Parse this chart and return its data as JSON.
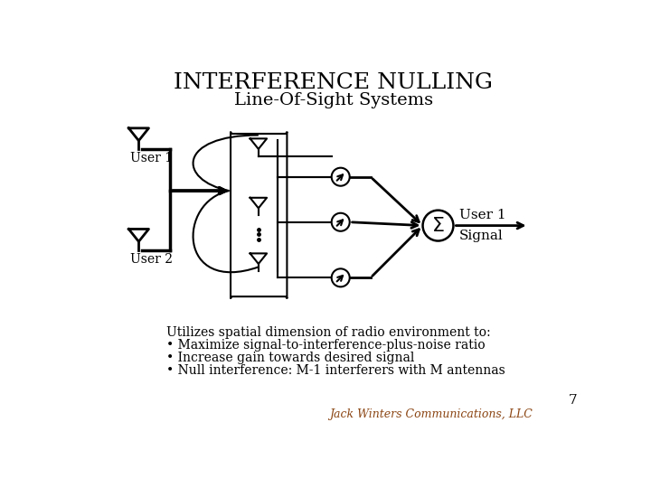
{
  "title": "INTERFERENCE NULLING",
  "subtitle": "Line-Of-Sight Systems",
  "title_fontsize": 18,
  "subtitle_fontsize": 14,
  "text_color": "#000000",
  "bg_color": "#ffffff",
  "bullet_texts": [
    "Utilizes spatial dimension of radio environment to:",
    "• Maximize signal-to-interference-plus-noise ratio",
    "• Increase gain towards desired signal",
    "• Null interference: M-1 interferers with M antennas"
  ],
  "user1_label": "User 1",
  "user2_label": "User 2",
  "output_label1": "User 1",
  "output_label2": "Signal",
  "page_number": "7",
  "watermark": "Jack Winters Communications, LLC"
}
